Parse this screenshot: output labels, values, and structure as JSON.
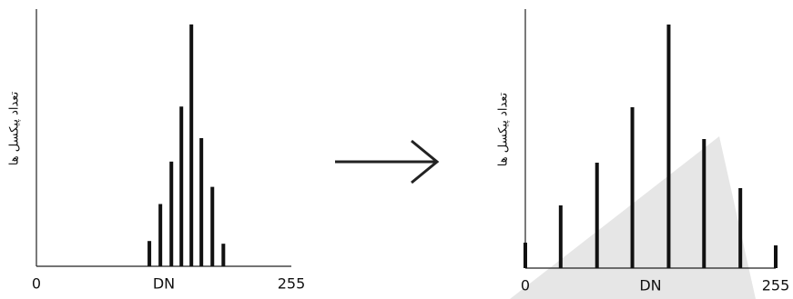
{
  "chart_data": [
    {
      "type": "bar",
      "ylabel": "تعداد پیکسل ها",
      "xlabel": "DN",
      "x": [
        113,
        124,
        135,
        145,
        155,
        165,
        176,
        187
      ],
      "values": [
        28,
        69,
        116,
        177,
        268,
        142,
        88,
        25
      ],
      "color": "#111111",
      "xlim": [
        0,
        255
      ],
      "xticks": [
        0,
        255
      ],
      "ylim": [
        0,
        285
      ]
    },
    {
      "type": "bar",
      "ylabel": "تعداد پیکسل ها",
      "xlabel": "DN",
      "x": [
        0,
        36,
        73,
        109,
        146,
        182,
        219,
        255
      ],
      "values": [
        28,
        69,
        116,
        177,
        268,
        142,
        88,
        25
      ],
      "color": "#111111",
      "xlim": [
        0,
        255
      ],
      "xticks": [
        0,
        255
      ],
      "ylim": [
        0,
        285
      ]
    }
  ]
}
